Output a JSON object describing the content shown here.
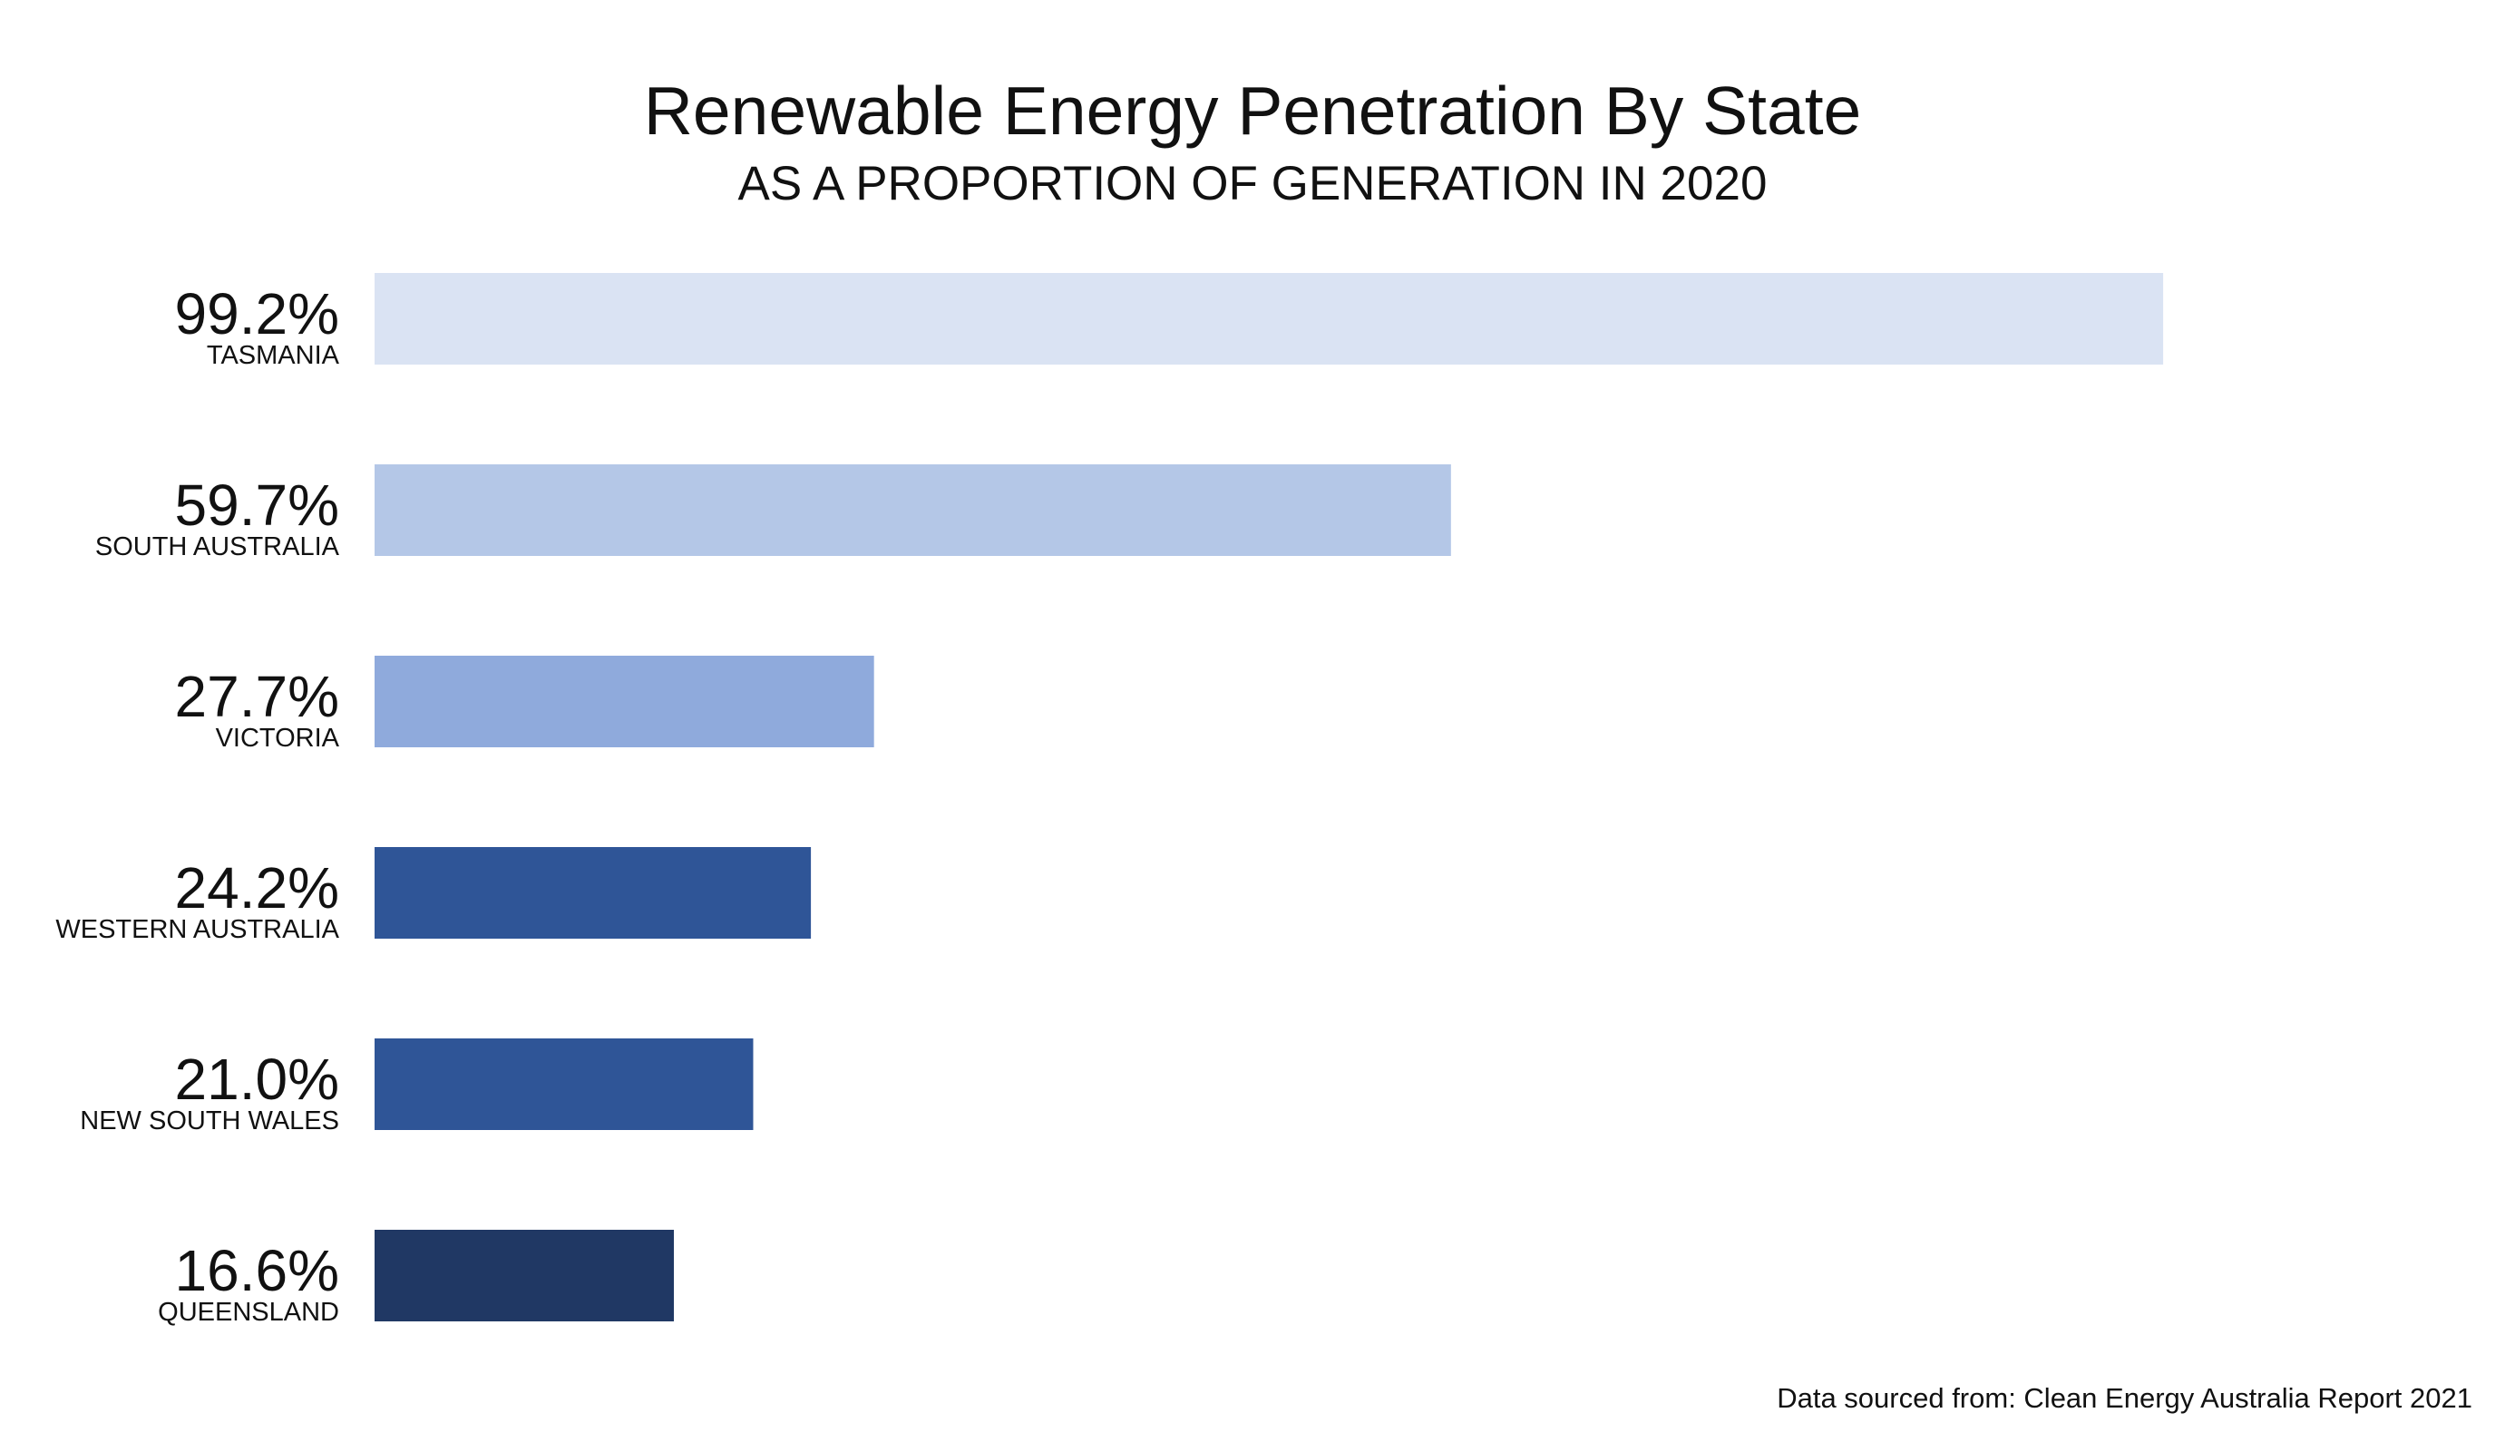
{
  "chart_data": {
    "type": "bar",
    "orientation": "horizontal",
    "title": "Renewable Energy Penetration By State",
    "subtitle": "AS A PROPORTION OF GENERATION IN 2020",
    "categories": [
      "TASMANIA",
      "SOUTH AUSTRALIA",
      "VICTORIA",
      "WESTERN AUSTRALIA",
      "NEW SOUTH WALES",
      "QUEENSLAND"
    ],
    "values": [
      99.2,
      59.7,
      27.7,
      24.2,
      21.0,
      16.6
    ],
    "value_labels": [
      "99.2%",
      "59.7%",
      "27.7%",
      "24.2%",
      "21.0%",
      "16.6%"
    ],
    "colors": [
      "#dae3f3",
      "#b4c7e7",
      "#8faadc",
      "#2f5597",
      "#2f5597",
      "#203864"
    ],
    "xlim": [
      0,
      100
    ],
    "grid": false,
    "legend": "none"
  },
  "footer": {
    "source": "Data sourced from: Clean Energy Australia Report 2021"
  }
}
